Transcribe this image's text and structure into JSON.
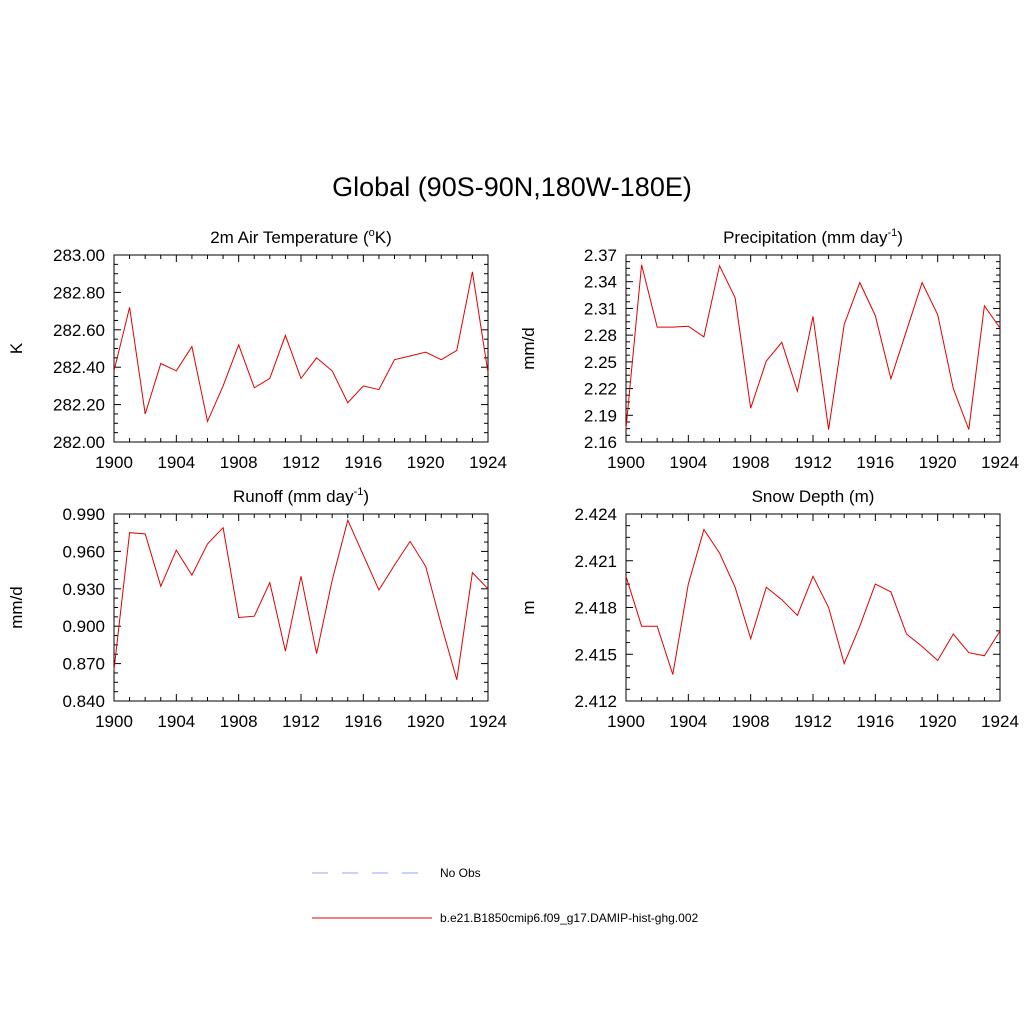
{
  "title": "Global (90S-90N,180W-180E)",
  "colors": {
    "model_line": "#e00000",
    "obs_line": "#9aa0ff",
    "axis": "#000000"
  },
  "legend": {
    "obs_label": "No Obs",
    "model_label": "b.e21.B1850cmip6.f09_g17.DAMIP-hist-ghg.002"
  },
  "chart_data": [
    {
      "type": "line",
      "title": "2m Air Temperature (",
      "title_sup": "o",
      "title_suffix": "K)",
      "ylabel": "K",
      "ylim": [
        282.0,
        283.0
      ],
      "yticks": [
        "282.00",
        "282.20",
        "282.40",
        "282.60",
        "282.80",
        "283.00"
      ],
      "xlim": [
        1900,
        1924
      ],
      "xticks": [
        "1900",
        "1904",
        "1908",
        "1912",
        "1916",
        "1920",
        "1924"
      ],
      "series": [
        {
          "name": "b.e21.B1850cmip6.f09_g17.DAMIP-hist-ghg.002",
          "x": [
            1900,
            1901,
            1902,
            1903,
            1904,
            1905,
            1906,
            1907,
            1908,
            1909,
            1910,
            1911,
            1912,
            1913,
            1914,
            1915,
            1916,
            1917,
            1918,
            1919,
            1920,
            1921,
            1922,
            1923,
            1924
          ],
          "values": [
            282.38,
            282.72,
            282.15,
            282.42,
            282.38,
            282.51,
            282.11,
            282.3,
            282.52,
            282.29,
            282.34,
            282.57,
            282.34,
            282.45,
            282.38,
            282.21,
            282.3,
            282.28,
            282.44,
            282.46,
            282.48,
            282.44,
            282.49,
            282.91,
            282.37
          ]
        }
      ]
    },
    {
      "type": "line",
      "title": "Precipitation (mm day",
      "title_sup": "-1",
      "title_suffix": ")",
      "ylabel": "mm/d",
      "ylim": [
        2.16,
        2.37
      ],
      "yticks": [
        "2.16",
        "2.19",
        "2.22",
        "2.25",
        "2.28",
        "2.31",
        "2.34",
        "2.37"
      ],
      "xlim": [
        1900,
        1924
      ],
      "xticks": [
        "1900",
        "1904",
        "1908",
        "1912",
        "1916",
        "1920",
        "1924"
      ],
      "series": [
        {
          "name": "b.e21.B1850cmip6.f09_g17.DAMIP-hist-ghg.002",
          "x": [
            1900,
            1901,
            1902,
            1903,
            1904,
            1905,
            1906,
            1907,
            1908,
            1909,
            1910,
            1911,
            1912,
            1913,
            1914,
            1915,
            1916,
            1917,
            1918,
            1919,
            1920,
            1921,
            1922,
            1923,
            1924
          ],
          "values": [
            2.175,
            2.359,
            2.289,
            2.289,
            2.29,
            2.278,
            2.358,
            2.322,
            2.198,
            2.251,
            2.272,
            2.217,
            2.301,
            2.174,
            2.292,
            2.339,
            2.302,
            2.231,
            2.285,
            2.339,
            2.303,
            2.22,
            2.174,
            2.313,
            2.288
          ]
        }
      ]
    },
    {
      "type": "line",
      "title": "Runoff (mm day",
      "title_sup": "-1",
      "title_suffix": ")",
      "ylabel": "mm/d",
      "ylim": [
        0.84,
        0.99
      ],
      "yticks": [
        "0.840",
        "0.870",
        "0.900",
        "0.930",
        "0.960",
        "0.990"
      ],
      "xlim": [
        1900,
        1924
      ],
      "xticks": [
        "1900",
        "1904",
        "1908",
        "1912",
        "1916",
        "1920",
        "1924"
      ],
      "series": [
        {
          "name": "b.e21.B1850cmip6.f09_g17.DAMIP-hist-ghg.002",
          "x": [
            1900,
            1901,
            1902,
            1903,
            1904,
            1905,
            1906,
            1907,
            1908,
            1909,
            1910,
            1911,
            1912,
            1913,
            1914,
            1915,
            1916,
            1917,
            1918,
            1919,
            1920,
            1921,
            1922,
            1923,
            1924
          ],
          "values": [
            0.865,
            0.975,
            0.974,
            0.932,
            0.961,
            0.941,
            0.966,
            0.979,
            0.907,
            0.908,
            0.935,
            0.88,
            0.94,
            0.878,
            0.937,
            0.985,
            0.957,
            0.929,
            0.949,
            0.968,
            0.948,
            0.901,
            0.857,
            0.943,
            0.93
          ]
        }
      ]
    },
    {
      "type": "line",
      "title": "Snow Depth (m)",
      "title_sup": "",
      "title_suffix": "",
      "ylabel": "m",
      "ylim": [
        2.412,
        2.424
      ],
      "yticks": [
        "2.412",
        "2.415",
        "2.418",
        "2.421",
        "2.424"
      ],
      "xlim": [
        1900,
        1924
      ],
      "xticks": [
        "1900",
        "1904",
        "1908",
        "1912",
        "1916",
        "1920",
        "1924"
      ],
      "series": [
        {
          "name": "b.e21.B1850cmip6.f09_g17.DAMIP-hist-ghg.002",
          "x": [
            1900,
            1901,
            1902,
            1903,
            1904,
            1905,
            1906,
            1907,
            1908,
            1909,
            1910,
            1911,
            1912,
            1913,
            1914,
            1915,
            1916,
            1917,
            1918,
            1919,
            1920,
            1921,
            1922,
            1923,
            1924
          ],
          "values": [
            2.42,
            2.4168,
            2.4168,
            2.4137,
            2.4195,
            2.423,
            2.4215,
            2.4193,
            2.416,
            2.4193,
            2.4185,
            2.4175,
            2.42,
            2.418,
            2.4144,
            2.4168,
            2.4195,
            2.419,
            2.4163,
            2.4155,
            2.4146,
            2.4163,
            2.4151,
            2.4149,
            2.4165
          ]
        }
      ]
    }
  ]
}
